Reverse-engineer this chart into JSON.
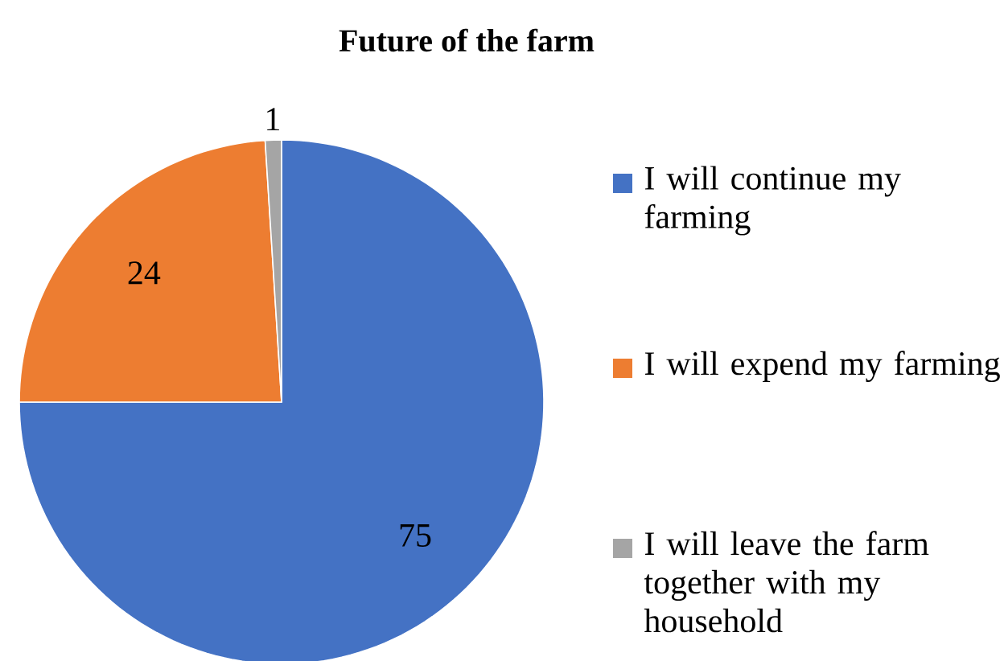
{
  "chart_data": {
    "type": "pie",
    "title": "Future of the farm",
    "categories": [
      "I will continue my farming",
      "I will expend my farming",
      "I will leave the farm together with my household"
    ],
    "values": [
      75,
      24,
      1
    ],
    "colors": [
      "#4472c4",
      "#ed7d31",
      "#a5a5a5"
    ],
    "data_labels": true,
    "legend": "right"
  }
}
